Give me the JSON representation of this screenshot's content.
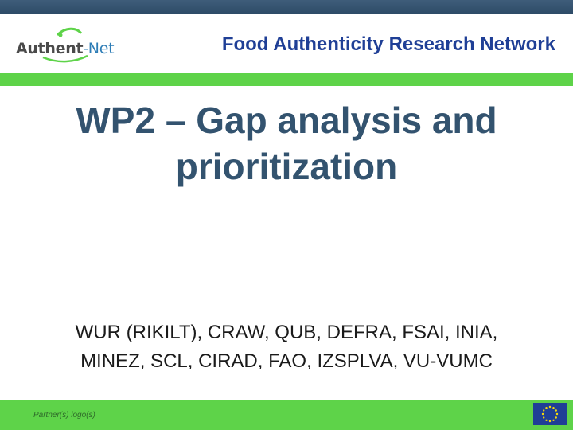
{
  "header": {
    "logo_text_main": "Authent",
    "logo_text_suffix": "-Net",
    "title": "Food Authenticity Research Network"
  },
  "slide": {
    "title_line1": "WP2 – Gap analysis and",
    "title_line2": "prioritization",
    "partners_line1": "WUR (RIKILT), CRAW, QUB, DEFRA, FSAI, INIA,",
    "partners_line2": "MINEZ, SCL, CIRAD, FAO, IZSPLVA, VU-VUMC"
  },
  "footer": {
    "partner_logos_label": "Partner(s) logo(s)"
  },
  "colors": {
    "top_band": "#2c4a66",
    "green_band": "#5ed349",
    "header_title": "#1f3f96",
    "main_title": "#33536f",
    "eu_blue": "#1f3f96",
    "eu_gold": "#f5d90a"
  },
  "icons": {
    "logo": "authent-net-logo",
    "flag": "eu-flag-icon"
  }
}
